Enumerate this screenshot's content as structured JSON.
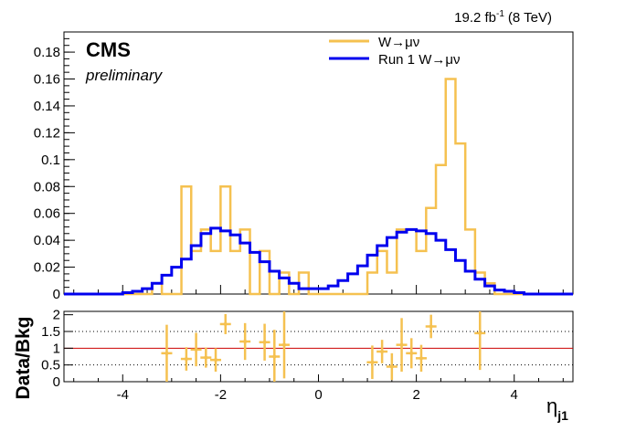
{
  "chart_data": [
    {
      "type": "histogram-step",
      "panel": "main",
      "lumi_label": "19.2 fb",
      "lumi_sup": "-1",
      "lumi_energy": "(8 TeV)",
      "experiment": "CMS",
      "status": "preliminary",
      "xlim": [
        -5.2,
        5.2
      ],
      "ylim": [
        0,
        0.195
      ],
      "grid": false,
      "legend_position": "top-right",
      "yticks": [
        0,
        0.02,
        0.04,
        0.06,
        0.08,
        0.1,
        0.12,
        0.14,
        0.16,
        0.18
      ],
      "ytick_labels": [
        "0",
        "0.02",
        "0.04",
        "0.06",
        "0.08",
        "0.1",
        "0.12",
        "0.14",
        "0.16",
        "0.18"
      ],
      "bin_edges": [
        -5.2,
        -5.0,
        -4.8,
        -4.6,
        -4.4,
        -4.2,
        -4.0,
        -3.8,
        -3.6,
        -3.4,
        -3.2,
        -3.0,
        -2.8,
        -2.6,
        -2.4,
        -2.2,
        -2.0,
        -1.8,
        -1.6,
        -1.4,
        -1.2,
        -1.0,
        -0.8,
        -0.6,
        -0.4,
        -0.2,
        0.0,
        0.2,
        0.4,
        0.6,
        0.8,
        1.0,
        1.2,
        1.4,
        1.6,
        1.8,
        2.0,
        2.2,
        2.4,
        2.6,
        2.8,
        3.0,
        3.2,
        3.4,
        3.6,
        3.8,
        4.0,
        4.2,
        4.4,
        4.6,
        4.8,
        5.0,
        5.2
      ],
      "series": [
        {
          "name": "W→μν",
          "color": "#f5c150",
          "values": [
            0,
            0,
            0,
            0,
            0,
            0,
            0,
            0,
            0,
            0.008,
            0,
            0,
            0.08,
            0.032,
            0.048,
            0.032,
            0.08,
            0.032,
            0.048,
            0,
            0.032,
            0,
            0.016,
            0,
            0.016,
            0,
            0,
            0,
            0,
            0,
            0,
            0.016,
            0.032,
            0.016,
            0.048,
            0.048,
            0.032,
            0.064,
            0.096,
            0.16,
            0.112,
            0.048,
            0.016,
            0.008,
            0,
            0,
            0,
            0,
            0,
            0,
            0,
            0
          ]
        },
        {
          "name": "Run 1 W→μν",
          "color": "#0000ee",
          "values": [
            0,
            0,
            0,
            0,
            0,
            0,
            0.001,
            0.002,
            0.004,
            0.008,
            0.014,
            0.02,
            0.026,
            0.036,
            0.045,
            0.049,
            0.047,
            0.044,
            0.038,
            0.031,
            0.024,
            0.017,
            0.012,
            0.008,
            0.004,
            0.004,
            0.004,
            0.006,
            0.01,
            0.015,
            0.021,
            0.029,
            0.036,
            0.042,
            0.046,
            0.048,
            0.047,
            0.045,
            0.04,
            0.033,
            0.025,
            0.017,
            0.011,
            0.006,
            0.003,
            0.002,
            0.001,
            0,
            0,
            0,
            0,
            0
          ]
        }
      ]
    },
    {
      "type": "ratio-scatter",
      "panel": "ratio",
      "ylabel": "Data/Bkg",
      "xlabel": "η",
      "xlabel_sub": "j1",
      "xlim": [
        -5.2,
        5.2
      ],
      "ylim": [
        0,
        2.1
      ],
      "yticks": [
        0,
        0.5,
        1,
        1.5,
        2
      ],
      "ytick_labels": [
        "0",
        "0.5",
        "1",
        "1.5",
        "2"
      ],
      "xticks": [
        -4,
        -2,
        0,
        2,
        4
      ],
      "xtick_labels": [
        "-4",
        "-2",
        "0",
        "2",
        "4"
      ],
      "reference_line": 1,
      "reference_color": "#cc0000",
      "dotted_lines": [
        0.5,
        1.5
      ],
      "color": "#f5c150",
      "points": [
        {
          "x": -3.1,
          "y": 0.85,
          "err": 0.85
        },
        {
          "x": -2.7,
          "y": 0.68,
          "err": 0.35
        },
        {
          "x": -2.5,
          "y": 0.96,
          "err": 0.5
        },
        {
          "x": -2.3,
          "y": 0.72,
          "err": 0.3
        },
        {
          "x": -2.1,
          "y": 0.65,
          "err": 0.35
        },
        {
          "x": -1.9,
          "y": 1.72,
          "err": 0.3
        },
        {
          "x": -1.5,
          "y": 1.2,
          "err": 0.55
        },
        {
          "x": -1.1,
          "y": 1.18,
          "err": 0.55
        },
        {
          "x": -0.9,
          "y": 0.75,
          "err": 0.8
        },
        {
          "x": -0.7,
          "y": 1.1,
          "err": 1.0
        },
        {
          "x": 1.1,
          "y": 0.58,
          "err": 0.5
        },
        {
          "x": 1.3,
          "y": 0.9,
          "err": 0.35
        },
        {
          "x": 1.5,
          "y": 0.45,
          "err": 0.4
        },
        {
          "x": 1.7,
          "y": 1.1,
          "err": 0.8
        },
        {
          "x": 1.9,
          "y": 0.85,
          "err": 0.45
        },
        {
          "x": 2.1,
          "y": 0.7,
          "err": 0.4
        },
        {
          "x": 2.3,
          "y": 1.65,
          "err": 0.35
        },
        {
          "x": 3.3,
          "y": 1.45,
          "err": 1.1
        }
      ]
    }
  ]
}
